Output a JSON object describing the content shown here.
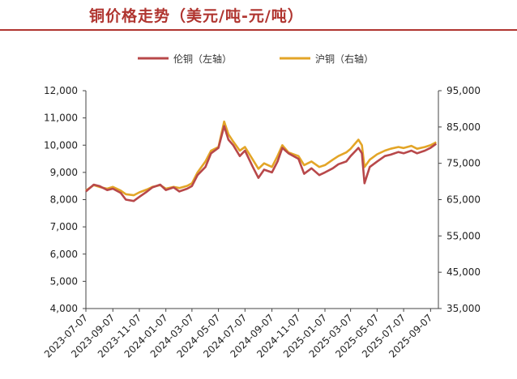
{
  "title": "铜价格走势（美元/吨-元/吨）",
  "colors": {
    "title": "#b03530",
    "lme": "#b8484a",
    "shfe": "#e3a527",
    "axis": "#444444"
  },
  "chart_data": {
    "type": "line",
    "title": "铜价格走势（美元/吨-元/吨）",
    "legend": {
      "placement": "top-center"
    },
    "grid": false,
    "y_left": {
      "label": "",
      "lim": [
        4000,
        12000
      ],
      "ticks": [
        "4,000",
        "5,000",
        "6,000",
        "7,000",
        "8,000",
        "9,000",
        "10,000",
        "11,000",
        "12,000"
      ]
    },
    "y_right": {
      "label": "",
      "lim": [
        35000,
        95000
      ],
      "ticks": [
        "35,000",
        "45,000",
        "55,000",
        "65,000",
        "75,000",
        "85,000",
        "95,000"
      ]
    },
    "x_ticks": [
      "2023-07-07",
      "2023-09-07",
      "2023-11-07",
      "2024-01-07",
      "2024-03-07",
      "2024-05-07",
      "2024-07-07",
      "2024-09-07",
      "2024-11-07",
      "2025-01-07",
      "2025-03-07",
      "2025-05-07",
      "2025-07-07",
      "2025-09-07"
    ],
    "series": [
      {
        "name": "伦铜（左轴）",
        "axis": "left",
        "color": "#b8484a",
        "points": [
          [
            "2023-07-07",
            8300
          ],
          [
            "2023-07-25",
            8550
          ],
          [
            "2023-08-07",
            8500
          ],
          [
            "2023-08-25",
            8350
          ],
          [
            "2023-09-07",
            8400
          ],
          [
            "2023-09-25",
            8250
          ],
          [
            "2023-10-07",
            8000
          ],
          [
            "2023-10-25",
            7950
          ],
          [
            "2023-11-07",
            8100
          ],
          [
            "2023-11-25",
            8300
          ],
          [
            "2023-12-07",
            8450
          ],
          [
            "2023-12-25",
            8550
          ],
          [
            "2024-01-07",
            8350
          ],
          [
            "2024-01-25",
            8450
          ],
          [
            "2024-02-07",
            8300
          ],
          [
            "2024-02-25",
            8400
          ],
          [
            "2024-03-07",
            8500
          ],
          [
            "2024-03-20",
            8900
          ],
          [
            "2024-04-07",
            9200
          ],
          [
            "2024-04-20",
            9700
          ],
          [
            "2024-05-07",
            9900
          ],
          [
            "2024-05-20",
            10700
          ],
          [
            "2024-05-30",
            10200
          ],
          [
            "2024-06-10",
            10000
          ],
          [
            "2024-06-25",
            9600
          ],
          [
            "2024-07-07",
            9800
          ],
          [
            "2024-07-25",
            9200
          ],
          [
            "2024-08-07",
            8800
          ],
          [
            "2024-08-20",
            9100
          ],
          [
            "2024-09-07",
            9000
          ],
          [
            "2024-09-20",
            9400
          ],
          [
            "2024-10-01",
            9900
          ],
          [
            "2024-10-15",
            9700
          ],
          [
            "2024-11-07",
            9500
          ],
          [
            "2024-11-20",
            8950
          ],
          [
            "2024-12-07",
            9150
          ],
          [
            "2024-12-25",
            8900
          ],
          [
            "2025-01-07",
            9000
          ],
          [
            "2025-01-25",
            9150
          ],
          [
            "2025-02-07",
            9300
          ],
          [
            "2025-02-25",
            9400
          ],
          [
            "2025-03-07",
            9600
          ],
          [
            "2025-03-25",
            9900
          ],
          [
            "2025-04-02",
            9700
          ],
          [
            "2025-04-08",
            8600
          ],
          [
            "2025-04-20",
            9200
          ],
          [
            "2025-05-07",
            9400
          ],
          [
            "2025-05-25",
            9600
          ],
          [
            "2025-06-07",
            9650
          ],
          [
            "2025-06-25",
            9750
          ],
          [
            "2025-07-07",
            9700
          ],
          [
            "2025-07-25",
            9800
          ],
          [
            "2025-08-07",
            9700
          ],
          [
            "2025-08-25",
            9800
          ],
          [
            "2025-09-07",
            9900
          ],
          [
            "2025-09-20",
            10050
          ]
        ]
      },
      {
        "name": "沪铜（右轴）",
        "axis": "right",
        "color": "#e3a527",
        "points": [
          [
            "2023-07-07",
            67500
          ],
          [
            "2023-07-25",
            69000
          ],
          [
            "2023-08-07",
            68500
          ],
          [
            "2023-08-25",
            68000
          ],
          [
            "2023-09-07",
            68500
          ],
          [
            "2023-09-25",
            67500
          ],
          [
            "2023-10-07",
            66500
          ],
          [
            "2023-10-25",
            66200
          ],
          [
            "2023-11-07",
            67000
          ],
          [
            "2023-11-25",
            67800
          ],
          [
            "2023-12-07",
            68500
          ],
          [
            "2023-12-25",
            69000
          ],
          [
            "2024-01-07",
            68000
          ],
          [
            "2024-01-25",
            68500
          ],
          [
            "2024-02-07",
            68200
          ],
          [
            "2024-02-25",
            68800
          ],
          [
            "2024-03-07",
            69500
          ],
          [
            "2024-03-20",
            72500
          ],
          [
            "2024-04-07",
            75500
          ],
          [
            "2024-04-20",
            78500
          ],
          [
            "2024-05-07",
            79500
          ],
          [
            "2024-05-20",
            86500
          ],
          [
            "2024-05-30",
            83000
          ],
          [
            "2024-06-10",
            81000
          ],
          [
            "2024-06-25",
            78500
          ],
          [
            "2024-07-07",
            79500
          ],
          [
            "2024-07-25",
            76000
          ],
          [
            "2024-08-07",
            73500
          ],
          [
            "2024-08-20",
            75000
          ],
          [
            "2024-09-07",
            74000
          ],
          [
            "2024-09-20",
            77000
          ],
          [
            "2024-10-01",
            80000
          ],
          [
            "2024-10-15",
            78000
          ],
          [
            "2024-11-07",
            77000
          ],
          [
            "2024-11-20",
            74500
          ],
          [
            "2024-12-07",
            75500
          ],
          [
            "2024-12-25",
            74000
          ],
          [
            "2025-01-07",
            74500
          ],
          [
            "2025-01-25",
            76000
          ],
          [
            "2025-02-07",
            77000
          ],
          [
            "2025-02-25",
            78000
          ],
          [
            "2025-03-07",
            79000
          ],
          [
            "2025-03-25",
            81500
          ],
          [
            "2025-04-02",
            80000
          ],
          [
            "2025-04-08",
            74000
          ],
          [
            "2025-04-20",
            76000
          ],
          [
            "2025-05-07",
            77500
          ],
          [
            "2025-05-25",
            78500
          ],
          [
            "2025-06-07",
            79000
          ],
          [
            "2025-06-25",
            79500
          ],
          [
            "2025-07-07",
            79200
          ],
          [
            "2025-07-25",
            79800
          ],
          [
            "2025-08-07",
            79000
          ],
          [
            "2025-08-25",
            79500
          ],
          [
            "2025-09-07",
            80000
          ],
          [
            "2025-09-20",
            80800
          ]
        ]
      }
    ]
  }
}
